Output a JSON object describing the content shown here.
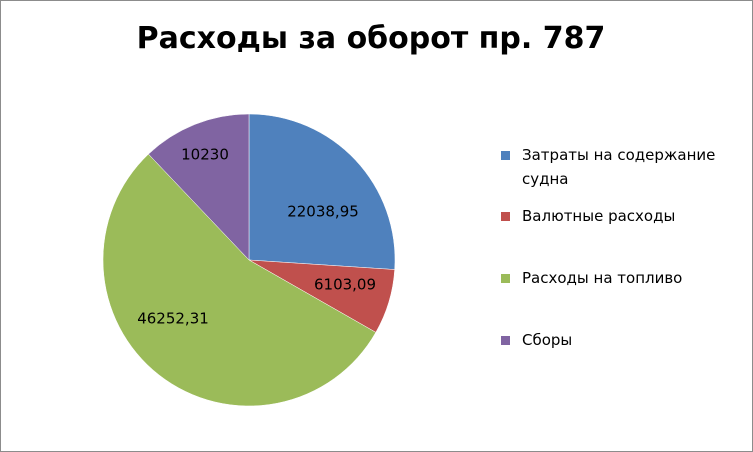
{
  "chart_data": {
    "type": "pie",
    "title": "Расходы за оборот пр. 787",
    "slices": [
      {
        "label": "Затраты на содержание судна",
        "value": 22038.95,
        "display": "22038,95",
        "color": "#4f81bd"
      },
      {
        "label": "Валютные расходы",
        "value": 6103.09,
        "display": "6103,09",
        "color": "#c0504d"
      },
      {
        "label": "Расходы на топливо",
        "value": 46252.31,
        "display": "46252,31",
        "color": "#9bbb59"
      },
      {
        "label": "Сборы",
        "value": 10230,
        "display": "10230",
        "color": "#8064a2"
      }
    ],
    "legend_position": "right"
  }
}
